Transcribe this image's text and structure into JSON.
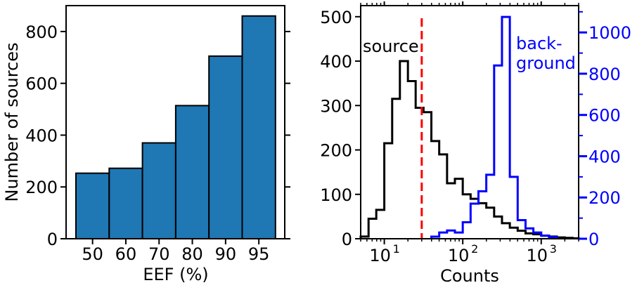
{
  "chart_data": [
    {
      "type": "bar",
      "xlabel": "EEF (%)",
      "ylabel": "Number of sources",
      "categories": [
        "50",
        "60",
        "70",
        "80",
        "90",
        "95"
      ],
      "values": [
        253,
        272,
        370,
        514,
        705,
        860
      ],
      "ylim": [
        0,
        900
      ],
      "yticks": [
        0,
        200,
        400,
        600,
        800
      ],
      "bar_color": "#1f77b4",
      "edge_color": "#000000"
    },
    {
      "type": "line",
      "xscale": "log",
      "xlabel": "Counts",
      "xlim": [
        5,
        3000
      ],
      "xticks": [
        {
          "value": 10,
          "label": "10",
          "exp": "1"
        },
        {
          "value": 100,
          "label": "10",
          "exp": "2"
        },
        {
          "value": 1000,
          "label": "10",
          "exp": "3"
        }
      ],
      "y_left": {
        "ylim": [
          0,
          525
        ],
        "yticks": [
          0,
          100,
          200,
          300,
          400,
          500
        ]
      },
      "y_right": {
        "ylim": [
          0,
          1130
        ],
        "yticks": [
          0,
          200,
          400,
          600,
          800,
          1000
        ],
        "color": "#0000ff"
      },
      "annotations": [
        {
          "text": "source",
          "color": "#000000"
        },
        {
          "text": "back-",
          "color": "#0000ff"
        },
        {
          "text": "ground",
          "color": "#0000ff"
        }
      ],
      "vline": {
        "x": 30,
        "color": "#ff0000",
        "style": "dashed"
      },
      "series": [
        {
          "axis": "left",
          "color": "#000000",
          "edges": [
            5,
            6.3,
            7.9,
            10,
            12.6,
            15.8,
            20,
            25.1,
            31.6,
            39.8,
            50.1,
            63.1,
            79.4,
            100,
            125.9,
            158.5,
            199.5,
            251.2,
            316.2,
            398.1,
            501.2,
            631,
            794.3,
            1000,
            1258.9,
            1584.9,
            1995.3,
            2511.9,
            3000
          ],
          "values": [
            5,
            45,
            65,
            215,
            315,
            400,
            355,
            295,
            285,
            220,
            190,
            125,
            135,
            100,
            90,
            80,
            70,
            50,
            35,
            25,
            18,
            12,
            10,
            7,
            5,
            3,
            2,
            1
          ]
        },
        {
          "axis": "right",
          "color": "#0000ff",
          "edges": [
            39.8,
            50.1,
            63.1,
            79.4,
            100,
            125.9,
            158.5,
            199.5,
            251.2,
            316.2,
            398.1,
            501.2,
            631,
            794.3,
            1000,
            1258.9,
            1584.9
          ],
          "values": [
            10,
            30,
            40,
            30,
            80,
            170,
            230,
            310,
            840,
            1075,
            300,
            90,
            50,
            30,
            15,
            8
          ]
        }
      ]
    }
  ]
}
